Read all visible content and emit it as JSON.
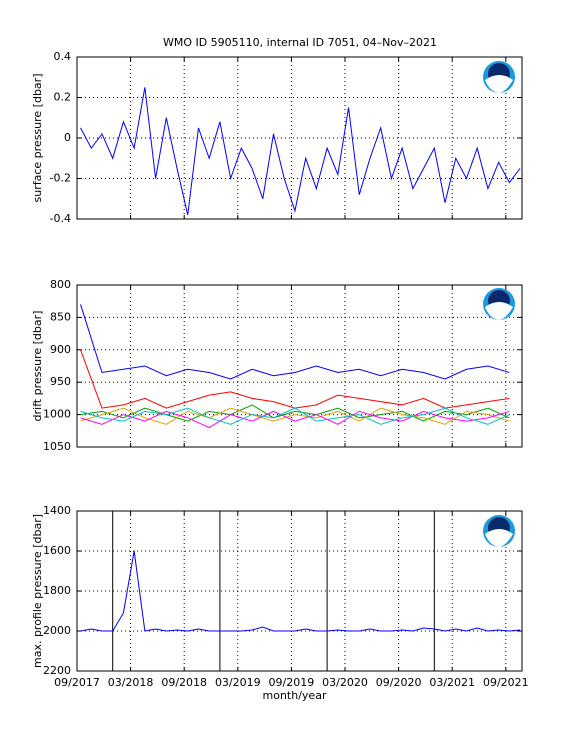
{
  "chart_data": [
    {
      "type": "line",
      "title": "WMO ID 5905110, internal ID 7051, 04–Nov–2021",
      "ylabel": "surface pressure [dbar]",
      "x": [
        2017.7,
        2017.8,
        2017.9,
        2018.0,
        2018.1,
        2018.2,
        2018.3,
        2018.4,
        2018.5,
        2018.6,
        2018.7,
        2018.8,
        2018.9,
        2019.0,
        2019.1,
        2019.2,
        2019.3,
        2019.4,
        2019.5,
        2019.6,
        2019.7,
        2019.8,
        2019.9,
        2020.0,
        2020.1,
        2020.2,
        2020.3,
        2020.4,
        2020.5,
        2020.6,
        2020.7,
        2020.8,
        2020.9,
        2021.0,
        2021.1,
        2021.2,
        2021.3,
        2021.4,
        2021.5,
        2021.6,
        2021.7,
        2021.8
      ],
      "series": [
        {
          "color": "#0000ff",
          "values": [
            0.05,
            -0.05,
            0.02,
            -0.1,
            0.08,
            -0.05,
            0.25,
            -0.2,
            0.1,
            -0.15,
            -0.38,
            0.05,
            -0.1,
            0.08,
            -0.2,
            -0.05,
            -0.15,
            -0.3,
            0.02,
            -0.2,
            -0.36,
            -0.1,
            -0.25,
            -0.05,
            -0.18,
            0.15,
            -0.28,
            -0.1,
            0.05,
            -0.2,
            -0.05,
            -0.25,
            -0.15,
            -0.05,
            -0.32,
            -0.1,
            -0.2,
            -0.05,
            -0.25,
            -0.12,
            -0.22,
            -0.15
          ]
        }
      ],
      "xlim": [
        2017.667,
        2021.818
      ],
      "xticks": [
        2017.667,
        2018.167,
        2018.667,
        2019.167,
        2019.667,
        2020.167,
        2020.667,
        2021.167,
        2021.667
      ],
      "ylim": [
        -0.4,
        0.4
      ],
      "yticks": [
        -0.4,
        -0.2,
        0,
        0.2,
        0.4
      ],
      "grid": true
    },
    {
      "type": "line",
      "ylabel": "drift pressure [dbar]",
      "yaxis_reversed": true,
      "x": [
        2017.7,
        2017.9,
        2018.1,
        2018.3,
        2018.5,
        2018.7,
        2018.9,
        2019.1,
        2019.3,
        2019.5,
        2019.7,
        2019.9,
        2020.1,
        2020.3,
        2020.5,
        2020.7,
        2020.9,
        2021.1,
        2021.3,
        2021.5,
        2021.7
      ],
      "series": [
        {
          "color": "#0000ff",
          "values": [
            830,
            935,
            930,
            925,
            940,
            930,
            935,
            945,
            930,
            940,
            935,
            925,
            935,
            930,
            940,
            930,
            935,
            945,
            930,
            925,
            935
          ]
        },
        {
          "color": "#ff0000",
          "values": [
            900,
            990,
            985,
            975,
            990,
            980,
            970,
            965,
            975,
            980,
            990,
            985,
            970,
            975,
            980,
            985,
            975,
            990,
            985,
            980,
            975
          ]
        },
        {
          "color": "#00a000",
          "values": [
            1000,
            995,
            1005,
            990,
            1000,
            1010,
            995,
            1000,
            985,
            1005,
            995,
            1000,
            990,
            1005,
            1000,
            995,
            1010,
            995,
            1000,
            990,
            1005
          ]
        },
        {
          "color": "#e0a000",
          "values": [
            1010,
            1000,
            990,
            1005,
            1015,
            995,
            1005,
            990,
            1000,
            1010,
            1000,
            1005,
            995,
            1010,
            990,
            1000,
            1005,
            1015,
            995,
            1000,
            1010
          ]
        },
        {
          "color": "#ff00ff",
          "values": [
            1005,
            1015,
            1000,
            1010,
            995,
            1005,
            1020,
            1000,
            1010,
            995,
            1010,
            1000,
            1015,
            995,
            1005,
            1010,
            995,
            1005,
            1010,
            1005,
            995
          ]
        },
        {
          "color": "#00c0c0",
          "values": [
            995,
            1005,
            1010,
            995,
            1000,
            990,
            1005,
            1015,
            1000,
            1005,
            990,
            1010,
            1005,
            1000,
            1015,
            1005,
            1000,
            990,
            1005,
            1015,
            1000
          ]
        }
      ],
      "xlim": [
        2017.667,
        2021.818
      ],
      "xticks": [
        2017.667,
        2018.167,
        2018.667,
        2019.167,
        2019.667,
        2020.167,
        2020.667,
        2021.167,
        2021.667
      ],
      "ylim": [
        800,
        1050
      ],
      "yticks": [
        800,
        850,
        900,
        950,
        1000,
        1050
      ],
      "grid": true
    },
    {
      "type": "line",
      "ylabel": "max. profile pressure [dbar]",
      "xlabel": "month/year",
      "yaxis_reversed": true,
      "x": [
        2017.7,
        2017.8,
        2017.9,
        2018.0,
        2018.1,
        2018.2,
        2018.3,
        2018.4,
        2018.5,
        2018.6,
        2018.7,
        2018.8,
        2018.9,
        2019.0,
        2019.1,
        2019.2,
        2019.3,
        2019.4,
        2019.5,
        2019.6,
        2019.7,
        2019.8,
        2019.9,
        2020.0,
        2020.1,
        2020.2,
        2020.3,
        2020.4,
        2020.5,
        2020.6,
        2020.7,
        2020.8,
        2020.9,
        2021.0,
        2021.1,
        2021.2,
        2021.3,
        2021.4,
        2021.5,
        2021.6,
        2021.7,
        2021.8
      ],
      "series": [
        {
          "color": "#0000ff",
          "values": [
            2000,
            1990,
            2000,
            2000,
            1910,
            1600,
            2000,
            1990,
            2000,
            1995,
            2000,
            1990,
            2000,
            2000,
            2000,
            2000,
            1995,
            1980,
            2000,
            2000,
            2000,
            1990,
            2000,
            2000,
            1995,
            2000,
            2000,
            1990,
            2000,
            2000,
            1995,
            2000,
            1985,
            1990,
            2000,
            1990,
            2000,
            1985,
            2000,
            1995,
            2000,
            1995
          ]
        }
      ],
      "vlines": [
        2018,
        2019,
        2020,
        2021
      ],
      "xlim": [
        2017.667,
        2021.818
      ],
      "xticks": [
        {
          "value": 2017.667,
          "label": "09/2017"
        },
        {
          "value": 2018.167,
          "label": "03/2018"
        },
        {
          "value": 2018.667,
          "label": "09/2018"
        },
        {
          "value": 2019.167,
          "label": "03/2019"
        },
        {
          "value": 2019.667,
          "label": "09/2019"
        },
        {
          "value": 2020.167,
          "label": "03/2020"
        },
        {
          "value": 2020.667,
          "label": "09/2020"
        },
        {
          "value": 2021.167,
          "label": "03/2021"
        },
        {
          "value": 2021.667,
          "label": "09/2021"
        }
      ],
      "ylim": [
        1400,
        2200
      ],
      "yticks": [
        1400,
        1600,
        1800,
        2000,
        2200
      ],
      "grid": true
    }
  ]
}
